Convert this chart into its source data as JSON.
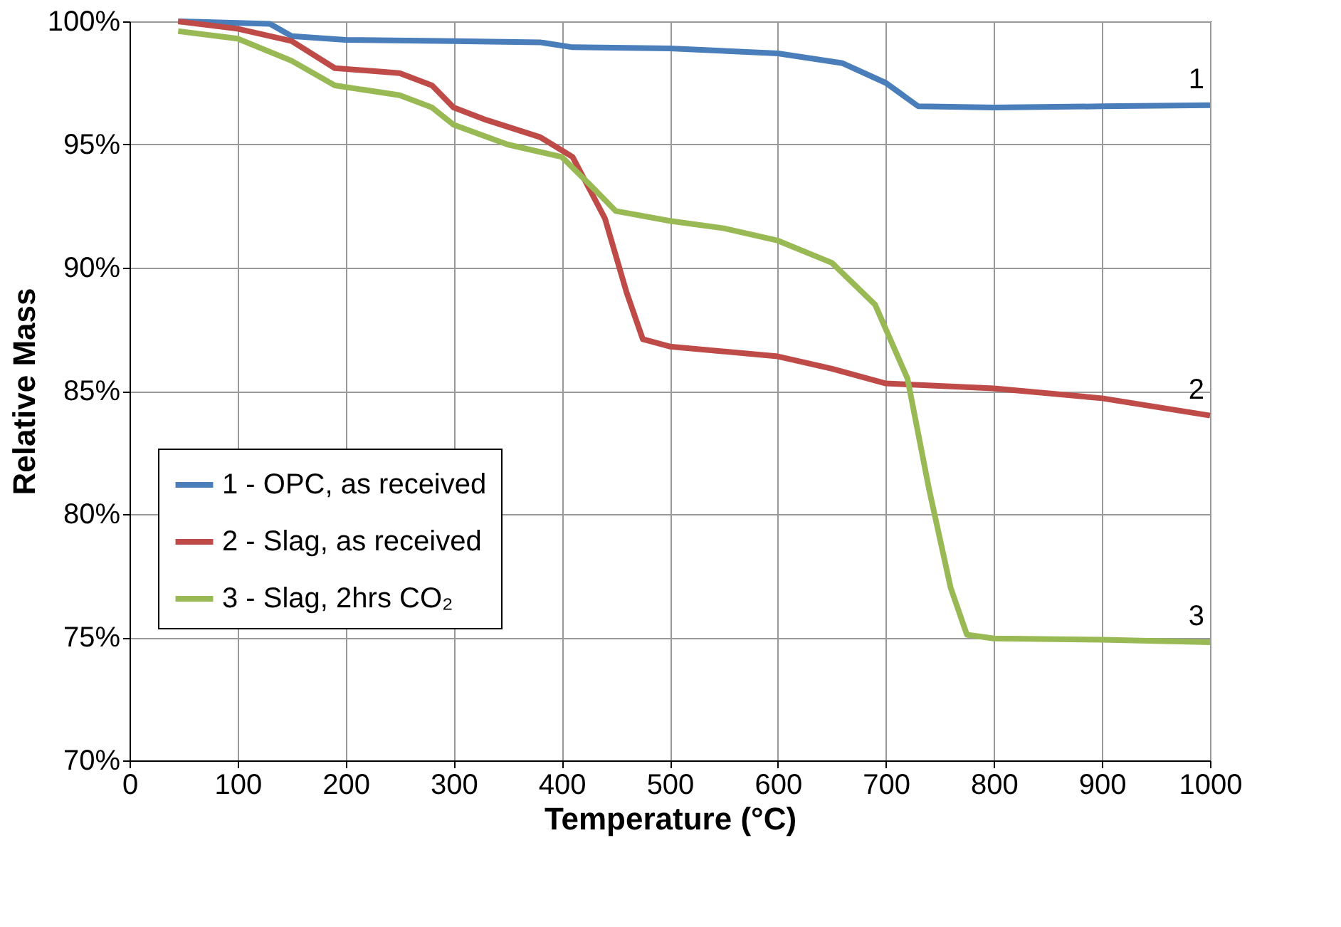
{
  "chart_data": {
    "type": "line",
    "xlabel": "Temperature (°C)",
    "ylabel": "Relative Mass",
    "xlim": [
      0,
      1000
    ],
    "xticks": [
      0,
      100,
      200,
      300,
      400,
      500,
      600,
      700,
      800,
      900,
      1000
    ],
    "ylim": [
      70,
      100
    ],
    "yticks": [
      {
        "value": 70,
        "label": "70%"
      },
      {
        "value": 75,
        "label": "75%"
      },
      {
        "value": 80,
        "label": "80%"
      },
      {
        "value": 85,
        "label": "85%"
      },
      {
        "value": 90,
        "label": "90%"
      },
      {
        "value": 95,
        "label": "95%"
      },
      {
        "value": 100,
        "label": "100%"
      }
    ],
    "grid": true,
    "legend": "bottom left",
    "marker": "none",
    "line_style": "solid",
    "series": [
      {
        "name": "1 - OPC, as received",
        "color": "#4a7ebb",
        "x": [
          45,
          130,
          150,
          200,
          300,
          380,
          410,
          500,
          600,
          660,
          700,
          730,
          800,
          900,
          1000
        ],
        "values": [
          100,
          99.9,
          99.4,
          99.25,
          99.2,
          99.15,
          98.95,
          98.9,
          98.7,
          98.3,
          97.5,
          96.55,
          96.5,
          96.55,
          96.6
        ]
      },
      {
        "name": "2 - Slag, as received",
        "color": "#be4b48",
        "x": [
          45,
          100,
          150,
          190,
          250,
          280,
          300,
          330,
          380,
          410,
          440,
          460,
          475,
          500,
          600,
          650,
          700,
          800,
          900,
          1000
        ],
        "values": [
          100,
          99.7,
          99.2,
          98.1,
          97.9,
          97.4,
          96.5,
          96.0,
          95.3,
          94.5,
          92.0,
          89,
          87.1,
          86.8,
          86.4,
          85.9,
          85.3,
          85.1,
          84.7,
          84.0
        ]
      },
      {
        "name": "3 - Slag, 2hrs CO₂",
        "color": "#98b954",
        "x": [
          45,
          100,
          150,
          190,
          250,
          280,
          300,
          350,
          400,
          430,
          450,
          500,
          550,
          600,
          650,
          690,
          720,
          740,
          760,
          775,
          800,
          900,
          1000
        ],
        "values": [
          99.6,
          99.3,
          98.4,
          97.4,
          97.0,
          96.5,
          95.8,
          95.0,
          94.5,
          93.2,
          92.3,
          91.9,
          91.6,
          91.1,
          90.2,
          88.5,
          85.5,
          81,
          77,
          75.1,
          74.95,
          74.9,
          74.8
        ]
      }
    ],
    "annotations": [
      "1",
      "2",
      "3"
    ]
  }
}
